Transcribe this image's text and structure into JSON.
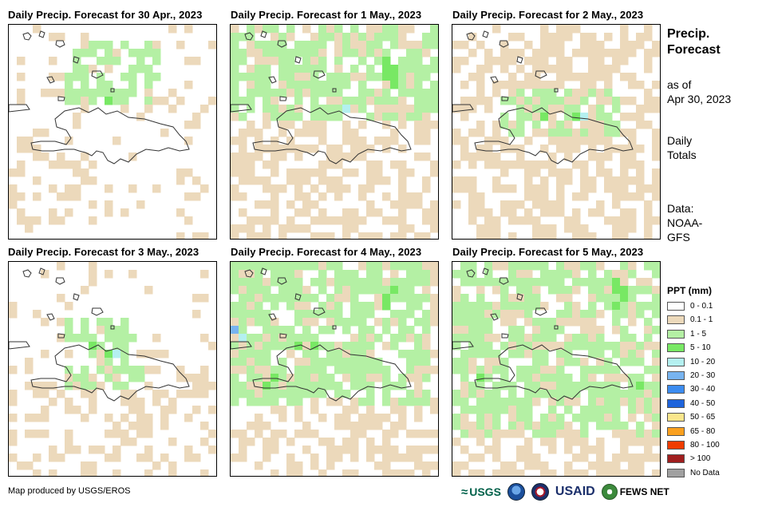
{
  "panels": [
    {
      "title": "Daily Precip. Forecast for 30 Apr., 2023",
      "levels": {
        "0.1-1": "widespread",
        "1-5": "scattered",
        "5-10": "isolated"
      }
    },
    {
      "title": "Daily Precip. Forecast for 1 May., 2023",
      "levels": {
        "0.1-1": "widespread",
        "1-5": "widespread",
        "5-10": "scattered",
        "10-20": "isolated"
      }
    },
    {
      "title": "Daily Precip. Forecast for 2 May., 2023",
      "levels": {
        "0.1-1": "widespread",
        "1-5": "scattered",
        "5-10": "isolated",
        "10-20": "isolated"
      }
    },
    {
      "title": "Daily Precip. Forecast for 3 May., 2023",
      "levels": {
        "0.1-1": "widespread",
        "1-5": "scattered",
        "5-10": "isolated",
        "10-20": "isolated"
      }
    },
    {
      "title": "Daily Precip. Forecast for 4 May., 2023",
      "levels": {
        "0.1-1": "widespread",
        "1-5": "widespread",
        "5-10": "scattered",
        "10-20": "isolated",
        "20-30": "isolated"
      }
    },
    {
      "title": "Daily Precip. Forecast for 5 May., 2023",
      "levels": {
        "0.1-1": "widespread",
        "1-5": "widespread",
        "5-10": "scattered"
      }
    }
  ],
  "sidebar": {
    "title_line1": "Precip.",
    "title_line2": "Forecast",
    "asof_line1": "as of",
    "asof_line2": "Apr 30, 2023",
    "totals_line1": "Daily",
    "totals_line2": "Totals",
    "data_line1": "Data:",
    "data_line2": "NOAA-",
    "data_line3": "GFS"
  },
  "legend": {
    "title": "PPT (mm)",
    "items": [
      {
        "label": "0 - 0.1",
        "color": "#ffffff"
      },
      {
        "label": "0.1 - 1",
        "color": "#ecd9bb"
      },
      {
        "label": "1 - 5",
        "color": "#b4f0a4"
      },
      {
        "label": "5 - 10",
        "color": "#78e864"
      },
      {
        "label": "10 - 20",
        "color": "#b4f0f0"
      },
      {
        "label": "20 - 30",
        "color": "#78b4f0"
      },
      {
        "label": "30 - 40",
        "color": "#3c8cf0"
      },
      {
        "label": "40 - 50",
        "color": "#1e64dc"
      },
      {
        "label": "50 - 65",
        "color": "#fae68c"
      },
      {
        "label": "65 - 80",
        "color": "#faa01e"
      },
      {
        "label": "80 - 100",
        "color": "#f03c00"
      },
      {
        "label": "> 100",
        "color": "#a01e1e"
      },
      {
        "label": "No Data",
        "color": "#a0a0a0"
      }
    ]
  },
  "footer": {
    "credit": "Map produced by USGS/EROS",
    "logo_usgs": "USGS",
    "logo_usaid": "USAID",
    "logo_fews": "FEWS NET"
  }
}
